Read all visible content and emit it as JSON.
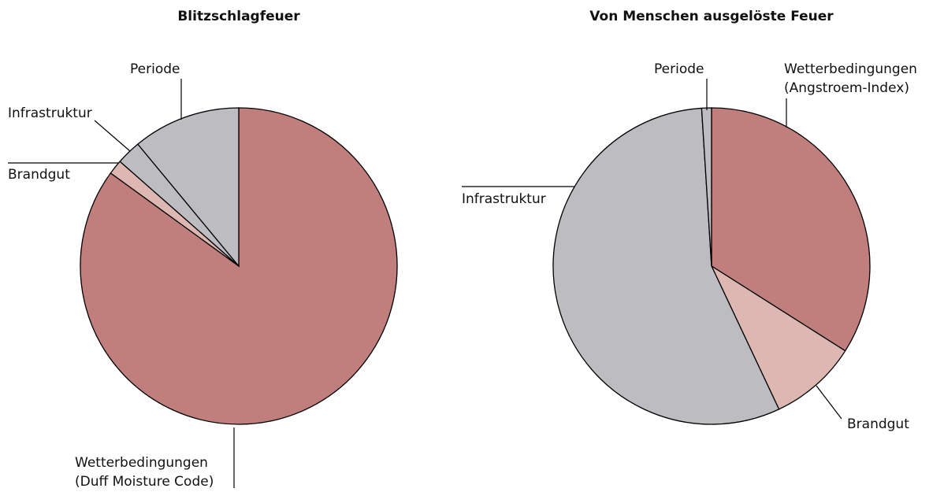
{
  "chart_data": [
    {
      "type": "pie",
      "title": "Blitzschlagfeuer",
      "labels": [
        [
          "Wetterbedingungen",
          "(Duff Moisture Code)"
        ],
        [
          "Brandgut"
        ],
        [
          "Infrastruktur"
        ],
        [
          "Periode"
        ]
      ],
      "values": [
        85,
        1.5,
        2.5,
        11
      ],
      "colors": [
        "#c07f7d",
        "#ddb8b3",
        "#bcbcc1",
        "#bcbcc1"
      ]
    },
    {
      "type": "pie",
      "title": "Von Menschen ausgelöste Feuer",
      "labels": [
        [
          "Wetterbedingungen",
          "(Angstroem-Index)"
        ],
        [
          "Brandgut"
        ],
        [
          "Infrastruktur"
        ],
        [
          "Periode"
        ]
      ],
      "values": [
        34,
        9,
        56,
        1
      ],
      "colors": [
        "#c07f7d",
        "#ddb8b3",
        "#bcbcc1",
        "#bcbcc1"
      ]
    }
  ]
}
